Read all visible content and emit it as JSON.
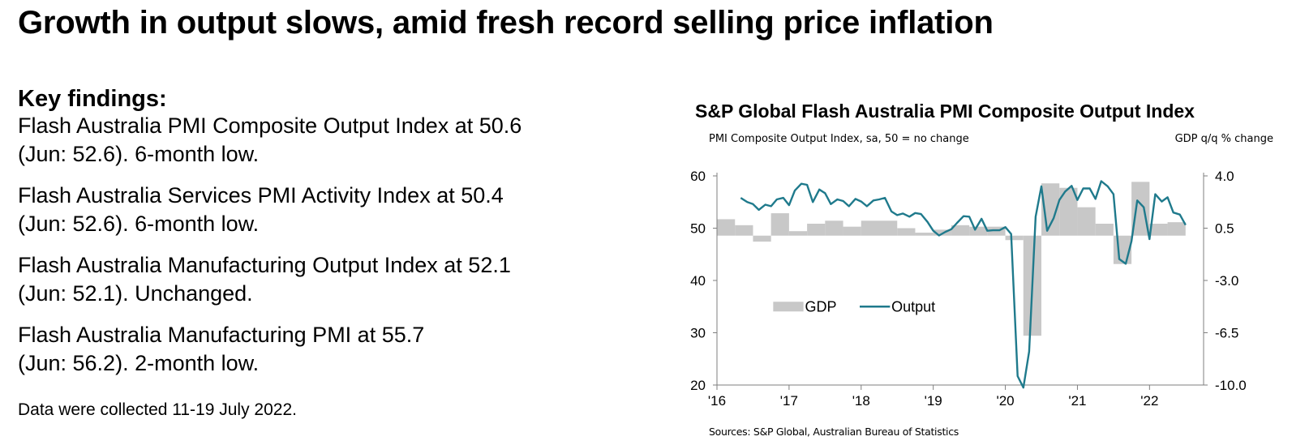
{
  "headline": "Growth in output slows, amid fresh record selling price inflation",
  "key_findings": {
    "title": "Key findings:",
    "items": [
      {
        "line1": "Flash Australia PMI Composite Output Index at 50.6",
        "line2": "(Jun: 52.6). 6-month low."
      },
      {
        "line1": "Flash Australia Services PMI Activity Index at 50.4",
        "line2": "(Jun: 52.6). 6-month low."
      },
      {
        "line1": "Flash Australia Manufacturing Output Index at 52.1",
        "line2": "(Jun: 52.1). Unchanged."
      },
      {
        "line1": "Flash Australia Manufacturing PMI at 55.7",
        "line2": "(Jun: 56.2). 2-month low."
      }
    ],
    "note": "Data were collected 11-19 July 2022."
  },
  "chart": {
    "left_axis_caption": "PMI Composite Output Index, sa, 50 = no change",
    "right_axis_caption": "GDP q/q % change",
    "sources": "Sources: S&P Global, Australian Bureau of Statistics"
  },
  "colors": {
    "output_line": "#1f7a8c",
    "gdp_bar": "#c8c8c8",
    "axis": "#7f7f7f"
  },
  "chart_data": {
    "type": "bar+line",
    "title": "S&P Global Flash Australia PMI Composite Output Index",
    "x_ticks": [
      "'16",
      "'17",
      "'18",
      "'19",
      "'20",
      "'21",
      "'22"
    ],
    "x_range": [
      2016.0,
      2022.75
    ],
    "y_left": {
      "label": "PMI Composite Output Index, sa, 50 = no change",
      "range": [
        20,
        60
      ],
      "ticks": [
        "20",
        "30",
        "40",
        "50",
        "60"
      ]
    },
    "y_right": {
      "label": "GDP q/q % change",
      "range": [
        -10.0,
        4.0
      ],
      "ticks": [
        "-10.0",
        "-6.5",
        "-3.0",
        "0.5",
        "4.0"
      ],
      "tick_values": [
        -10.0,
        -6.5,
        -3.0,
        0.5,
        4.0
      ]
    },
    "legend": {
      "position": "center-left",
      "entries": [
        "GDP",
        "Output"
      ]
    },
    "gdp": {
      "name": "GDP",
      "quarters": [
        2016.0,
        2016.25,
        2016.5,
        2016.75,
        2017.0,
        2017.25,
        2017.5,
        2017.75,
        2018.0,
        2018.25,
        2018.5,
        2018.75,
        2019.0,
        2019.25,
        2019.5,
        2019.75,
        2020.0,
        2020.25,
        2020.5,
        2020.75,
        2021.0,
        2021.25,
        2021.5,
        2021.75,
        2022.0,
        2022.25
      ],
      "values": [
        1.1,
        0.7,
        -0.4,
        1.5,
        0.3,
        0.8,
        1.0,
        0.6,
        1.0,
        1.0,
        0.5,
        0.2,
        0.4,
        0.7,
        0.6,
        0.6,
        -0.3,
        -6.7,
        3.5,
        3.2,
        1.9,
        0.8,
        -1.9,
        3.6,
        0.8,
        0.9
      ]
    },
    "output": {
      "name": "Output",
      "x": [
        2016.33,
        2016.42,
        2016.5,
        2016.58,
        2016.67,
        2016.75,
        2016.83,
        2016.92,
        2017.0,
        2017.08,
        2017.17,
        2017.25,
        2017.33,
        2017.42,
        2017.5,
        2017.58,
        2017.67,
        2017.75,
        2017.83,
        2017.92,
        2018.0,
        2018.08,
        2018.17,
        2018.25,
        2018.33,
        2018.42,
        2018.5,
        2018.58,
        2018.67,
        2018.75,
        2018.83,
        2018.92,
        2019.0,
        2019.08,
        2019.17,
        2019.25,
        2019.33,
        2019.42,
        2019.5,
        2019.58,
        2019.67,
        2019.75,
        2019.83,
        2019.92,
        2020.0,
        2020.08,
        2020.17,
        2020.25,
        2020.33,
        2020.42,
        2020.5,
        2020.58,
        2020.67,
        2020.75,
        2020.83,
        2020.92,
        2021.0,
        2021.08,
        2021.17,
        2021.25,
        2021.33,
        2021.42,
        2021.5,
        2021.58,
        2021.67,
        2021.75,
        2021.83,
        2021.92,
        2022.0,
        2022.08,
        2022.17,
        2022.25,
        2022.33,
        2022.42,
        2022.5
      ],
      "values": [
        55.8,
        55.0,
        54.6,
        53.5,
        54.5,
        54.2,
        55.5,
        55.8,
        54.4,
        57.2,
        58.5,
        58.3,
        55.0,
        57.4,
        56.7,
        54.6,
        55.5,
        55.2,
        54.2,
        55.6,
        55.1,
        54.2,
        55.3,
        55.5,
        55.8,
        53.2,
        52.5,
        52.8,
        52.2,
        52.9,
        52.7,
        51.2,
        49.5,
        48.6,
        49.3,
        49.8,
        51.0,
        52.3,
        52.2,
        49.7,
        51.8,
        49.5,
        49.6,
        49.6,
        50.2,
        48.9,
        21.7,
        19.5,
        26.4,
        52.2,
        58.0,
        49.5,
        51.9,
        55.4,
        57.0,
        58.1,
        55.4,
        57.6,
        57.6,
        55.6,
        59.0,
        58.0,
        56.5,
        44.1,
        43.2,
        47.5,
        55.3,
        54.0,
        47.9,
        56.5,
        55.1,
        55.9,
        53.0,
        52.6,
        50.6
      ]
    }
  }
}
